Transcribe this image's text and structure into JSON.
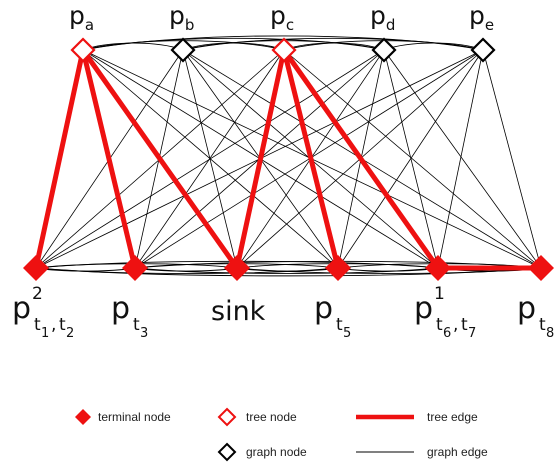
{
  "top_nodes": [
    {
      "id": "pa",
      "base": "p",
      "sub": "a",
      "kind": "tree"
    },
    {
      "id": "pb",
      "base": "p",
      "sub": "b",
      "kind": "graph"
    },
    {
      "id": "pc",
      "base": "p",
      "sub": "c",
      "kind": "tree"
    },
    {
      "id": "pd",
      "base": "p",
      "sub": "d",
      "kind": "graph"
    },
    {
      "id": "pe",
      "base": "p",
      "sub": "e",
      "kind": "graph"
    }
  ],
  "bottom_nodes": [
    {
      "id": "b1",
      "kind": "terminal",
      "label": {
        "base": "p",
        "sup": "2",
        "sub": "t",
        "sub_parts": [
          [
            "t",
            "1"
          ],
          [
            "t",
            "2"
          ]
        ]
      }
    },
    {
      "id": "b2",
      "kind": "terminal",
      "label": {
        "base": "p",
        "sub_parts": [
          [
            "t",
            "3"
          ]
        ]
      }
    },
    {
      "id": "b3",
      "kind": "terminal",
      "label": {
        "base": "sink"
      }
    },
    {
      "id": "b4",
      "kind": "terminal",
      "label": {
        "base": "p",
        "sub_parts": [
          [
            "t",
            "5"
          ]
        ]
      }
    },
    {
      "id": "b5",
      "kind": "terminal",
      "label": {
        "base": "p",
        "sup": "1",
        "sub_parts": [
          [
            "t",
            "6"
          ],
          [
            "t",
            "7"
          ]
        ]
      }
    },
    {
      "id": "b6",
      "kind": "terminal",
      "label": {
        "base": "p",
        "sub_parts": [
          [
            "t",
            "8"
          ]
        ]
      }
    }
  ],
  "tree_edges": [
    [
      "pa",
      "b1"
    ],
    [
      "pa",
      "b2"
    ],
    [
      "pa",
      "b3"
    ],
    [
      "pc",
      "b3"
    ],
    [
      "pc",
      "b4"
    ],
    [
      "pc",
      "b5"
    ],
    [
      "b5",
      "b6"
    ]
  ],
  "graph_edges": "complete bipartite between top and bottom rows, plus curved arcs among top nodes and among bottom nodes",
  "colors": {
    "terminal": "#ee1111",
    "tree": "#ee1111",
    "graph": "#000000"
  },
  "legend": {
    "terminal_label": "terminal node",
    "tree_node_label": "tree node",
    "tree_edge_label": "tree edge",
    "graph_node_label": "graph node",
    "graph_edge_label": "graph edge"
  }
}
